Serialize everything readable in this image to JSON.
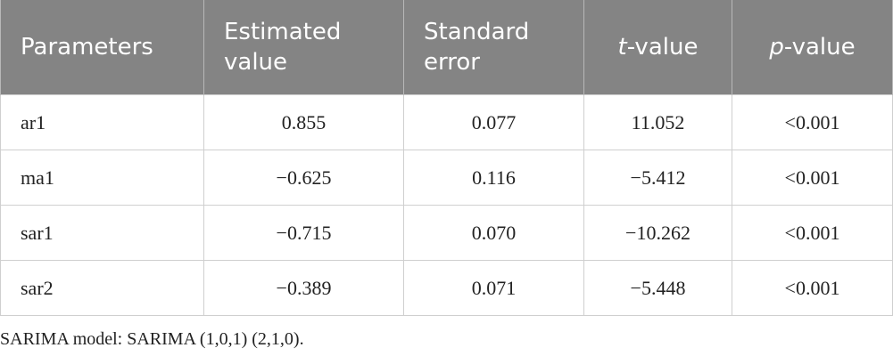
{
  "table": {
    "header": [
      "Parameters",
      "Estimated value",
      "Standard error",
      "t-value",
      "p-value"
    ],
    "rows": [
      [
        "ar1",
        "0.855",
        "0.077",
        "11.052",
        "<0.001"
      ],
      [
        "ma1",
        "−0.625",
        "0.116",
        "−5.412",
        "<0.001"
      ],
      [
        "sar1",
        "−0.715",
        "0.070",
        "−10.262",
        "<0.001"
      ],
      [
        "sar2",
        "−0.389",
        "0.071",
        "−5.448",
        "<0.001"
      ]
    ],
    "footnote": "SARIMA model: SARIMA (1,0,1) (2,1,0)."
  }
}
